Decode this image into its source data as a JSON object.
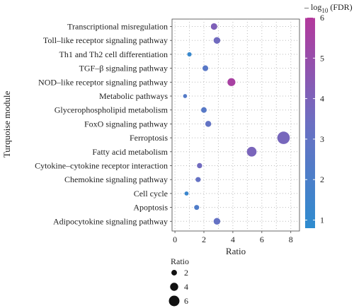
{
  "chart_data": {
    "type": "scatter",
    "xlabel": "Ratio",
    "ylabel": "Turquoise module",
    "xlim": [
      -0.2,
      8.6
    ],
    "x_ticks": [
      0,
      2,
      4,
      6,
      8
    ],
    "grid": "dotted",
    "categories": [
      "Transcriptional misregulation",
      "Toll–like receptor signaling pathway",
      "Th1 and Th2 cell differentiation",
      "TGF–β signaling pathway",
      "NOD–like receptor signaling pathway",
      "Metabolic pathways",
      "Glycerophospholipid metabolism",
      "FoxO signaling pathway",
      "Ferroptosis",
      "Fatty acid metabolism",
      "Cytokine–cytokine receptor interaction",
      "Chemokine signaling pathway",
      "Cell cycle",
      "Apoptosis",
      "Adipocytokine signaling pathway"
    ],
    "points": [
      {
        "category": "Transcriptional misregulation",
        "ratio": 2.7,
        "neglog10_fdr": 4.1
      },
      {
        "category": "Toll–like receptor signaling pathway",
        "ratio": 2.9,
        "neglog10_fdr": 3.6
      },
      {
        "category": "Th1 and Th2 cell differentiation",
        "ratio": 1.0,
        "neglog10_fdr": 1.2
      },
      {
        "category": "TGF–β signaling pathway",
        "ratio": 2.1,
        "neglog10_fdr": 2.6
      },
      {
        "category": "NOD–like receptor signaling pathway",
        "ratio": 3.9,
        "neglog10_fdr": 5.6
      },
      {
        "category": "Metabolic pathways",
        "ratio": 0.7,
        "neglog10_fdr": 2.4
      },
      {
        "category": "Glycerophospholipid metabolism",
        "ratio": 2.0,
        "neglog10_fdr": 2.5
      },
      {
        "category": "FoxO signaling pathway",
        "ratio": 2.3,
        "neglog10_fdr": 3.0
      },
      {
        "category": "Ferroptosis",
        "ratio": 7.5,
        "neglog10_fdr": 3.8
      },
      {
        "category": "Fatty acid metabolism",
        "ratio": 5.3,
        "neglog10_fdr": 3.9
      },
      {
        "category": "Cytokine–cytokine receptor interaction",
        "ratio": 1.7,
        "neglog10_fdr": 3.6
      },
      {
        "category": "Chemokine signaling pathway",
        "ratio": 1.6,
        "neglog10_fdr": 3.1
      },
      {
        "category": "Cell cycle",
        "ratio": 0.8,
        "neglog10_fdr": 1.3
      },
      {
        "category": "Apoptosis",
        "ratio": 1.5,
        "neglog10_fdr": 2.2
      },
      {
        "category": "Adipocytokine signaling pathway",
        "ratio": 2.9,
        "neglog10_fdr": 3.1
      }
    ],
    "color_legend": {
      "title_prefix": "– log",
      "title_sub": "10",
      "title_suffix": " (FDR)",
      "range": [
        0.8,
        6.0
      ],
      "ticks": [
        1,
        2,
        3,
        4,
        5,
        6
      ],
      "color_low": "#2e8ccf",
      "color_mid": "#6c6fc2",
      "color_high": "#b3399c"
    },
    "size_legend": {
      "title": "Ratio",
      "values": [
        2,
        4,
        6
      ]
    }
  }
}
